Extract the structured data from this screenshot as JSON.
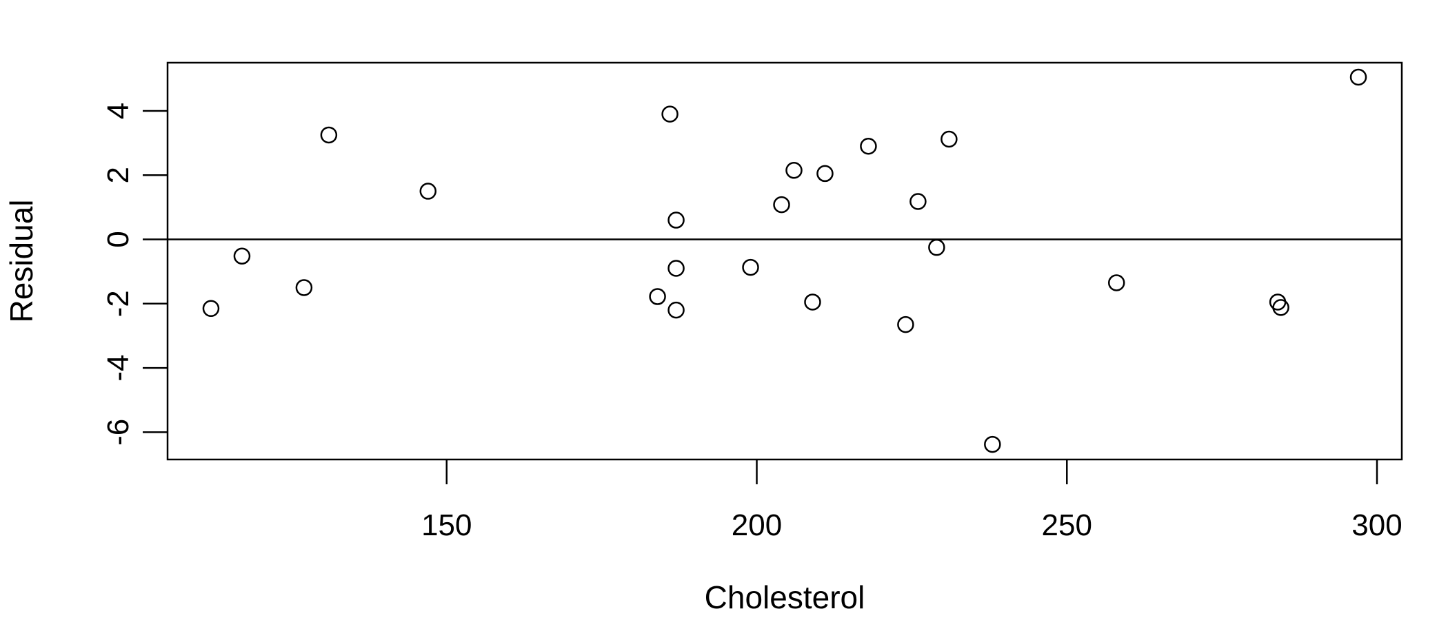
{
  "chart_data": {
    "type": "scatter",
    "title": "",
    "xlabel": "Cholesterol",
    "ylabel": "Residual",
    "xlim": [
      105,
      304
    ],
    "ylim": [
      -6.85,
      5.5
    ],
    "x_ticks": [
      150,
      200,
      250,
      300
    ],
    "y_ticks": [
      4,
      2,
      0,
      -2,
      -4,
      -6
    ],
    "reference_line_y": 0,
    "grid": false,
    "legend": "none",
    "marker": "open-circle",
    "points": [
      {
        "x": 112,
        "y": -2.15
      },
      {
        "x": 117,
        "y": -0.52
      },
      {
        "x": 127,
        "y": -1.5
      },
      {
        "x": 131,
        "y": 3.25
      },
      {
        "x": 147,
        "y": 1.5
      },
      {
        "x": 184,
        "y": -1.78
      },
      {
        "x": 186,
        "y": 3.9
      },
      {
        "x": 187,
        "y": 0.6
      },
      {
        "x": 187,
        "y": -0.9
      },
      {
        "x": 187,
        "y": -2.2
      },
      {
        "x": 199,
        "y": -0.87
      },
      {
        "x": 204,
        "y": 1.08
      },
      {
        "x": 206,
        "y": 2.15
      },
      {
        "x": 209,
        "y": -1.95
      },
      {
        "x": 211,
        "y": 2.05
      },
      {
        "x": 218,
        "y": 2.9
      },
      {
        "x": 224,
        "y": -2.65
      },
      {
        "x": 226,
        "y": 1.18
      },
      {
        "x": 229,
        "y": -0.25
      },
      {
        "x": 231,
        "y": 3.12
      },
      {
        "x": 238,
        "y": -6.38
      },
      {
        "x": 258,
        "y": -1.35
      },
      {
        "x": 284,
        "y": -1.95
      },
      {
        "x": 284.5,
        "y": -2.12
      },
      {
        "x": 297,
        "y": 5.05
      }
    ]
  }
}
